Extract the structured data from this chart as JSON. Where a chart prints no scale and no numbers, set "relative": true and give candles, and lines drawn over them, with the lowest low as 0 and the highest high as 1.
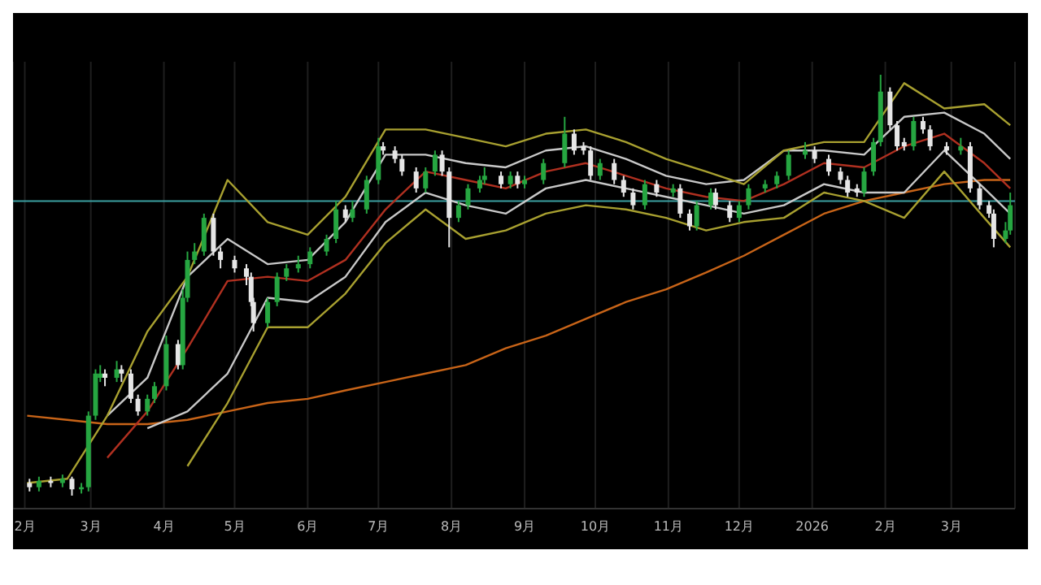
{
  "chart_data": {
    "type": "candlestick",
    "relative": true,
    "grid": "x",
    "xlim": [
      "2025-01-27",
      "2026-03-28"
    ],
    "xticks": [
      {
        "value": "2025-02-01",
        "label": "2月"
      },
      {
        "value": "2025-03-01",
        "label": "3月"
      },
      {
        "value": "2025-04-01",
        "label": "4月"
      },
      {
        "value": "2025-05-01",
        "label": "5月"
      },
      {
        "value": "2025-06-01",
        "label": "6月"
      },
      {
        "value": "2025-07-01",
        "label": "7月"
      },
      {
        "value": "2025-08-01",
        "label": "8月"
      },
      {
        "value": "2025-09-01",
        "label": "9月"
      },
      {
        "value": "2025-10-01",
        "label": "10月"
      },
      {
        "value": "2025-11-01",
        "label": "11月"
      },
      {
        "value": "2025-12-01",
        "label": "12月"
      },
      {
        "value": "2026-01-01",
        "label": "2026"
      },
      {
        "value": "2026-02-01",
        "label": "2月"
      },
      {
        "value": "2026-03-01",
        "label": "3月"
      }
    ],
    "x": [
      "2025-02-03",
      "2025-02-07",
      "2025-02-12",
      "2025-02-17",
      "2025-02-21",
      "2025-02-25",
      "2025-02-28",
      "2025-03-03",
      "2025-03-05",
      "2025-03-07",
      "2025-03-12",
      "2025-03-14",
      "2025-03-18",
      "2025-03-21",
      "2025-03-25",
      "2025-03-28",
      "2025-04-02",
      "2025-04-07",
      "2025-04-09",
      "2025-04-11",
      "2025-04-14",
      "2025-04-18",
      "2025-04-22",
      "2025-04-25",
      "2025-05-01",
      "2025-05-06",
      "2025-05-08",
      "2025-05-09",
      "2025-05-15",
      "2025-05-19",
      "2025-05-23",
      "2025-05-28",
      "2025-06-02",
      "2025-06-09",
      "2025-06-13",
      "2025-06-17",
      "2025-06-20",
      "2025-06-26",
      "2025-07-01",
      "2025-07-03",
      "2025-07-08",
      "2025-07-11",
      "2025-07-17",
      "2025-07-21",
      "2025-07-25",
      "2025-07-28",
      "2025-07-31",
      "2025-08-04",
      "2025-08-08",
      "2025-08-13",
      "2025-08-15",
      "2025-08-22",
      "2025-08-26",
      "2025-08-29",
      "2025-09-01",
      "2025-09-09",
      "2025-09-18",
      "2025-09-22",
      "2025-09-26",
      "2025-09-29",
      "2025-10-03",
      "2025-10-09",
      "2025-10-13",
      "2025-10-17",
      "2025-10-22",
      "2025-10-27",
      "2025-11-03",
      "2025-11-06",
      "2025-11-10",
      "2025-11-13",
      "2025-11-19",
      "2025-11-21",
      "2025-11-27",
      "2025-12-01",
      "2025-12-05",
      "2025-12-12",
      "2025-12-17",
      "2025-12-22",
      "2025-12-29",
      "2026-01-02",
      "2026-01-08",
      "2026-01-13",
      "2026-01-16",
      "2026-01-20",
      "2026-01-23",
      "2026-01-27",
      "2026-01-30",
      "2026-02-03",
      "2026-02-06",
      "2026-02-09",
      "2026-02-13",
      "2026-02-17",
      "2026-02-20",
      "2026-02-27",
      "2026-03-05",
      "2026-03-09",
      "2026-03-13",
      "2026-03-17",
      "2026-03-19",
      "2026-03-24",
      "2026-03-26"
    ],
    "ohlc": [
      [
        0.03,
        0.04,
        0.01,
        0.02
      ],
      [
        0.02,
        0.045,
        0.01,
        0.035
      ],
      [
        0.035,
        0.045,
        0.02,
        0.03
      ],
      [
        0.03,
        0.05,
        0.02,
        0.04
      ],
      [
        0.04,
        0.045,
        0,
        0.015
      ],
      [
        0.015,
        0.03,
        0.005,
        0.02
      ],
      [
        0.02,
        0.2,
        0.01,
        0.19
      ],
      [
        0.19,
        0.3,
        0.18,
        0.29
      ],
      [
        0.28,
        0.31,
        0.27,
        0.29
      ],
      [
        0.29,
        0.3,
        0.26,
        0.28
      ],
      [
        0.28,
        0.32,
        0.27,
        0.3
      ],
      [
        0.3,
        0.31,
        0.27,
        0.29
      ],
      [
        0.29,
        0.3,
        0.22,
        0.23
      ],
      [
        0.23,
        0.24,
        0.19,
        0.2
      ],
      [
        0.2,
        0.24,
        0.19,
        0.23
      ],
      [
        0.23,
        0.27,
        0.22,
        0.26
      ],
      [
        0.26,
        0.38,
        0.25,
        0.36
      ],
      [
        0.36,
        0.37,
        0.3,
        0.31
      ],
      [
        0.31,
        0.49,
        0.3,
        0.47
      ],
      [
        0.47,
        0.58,
        0.46,
        0.56
      ],
      [
        0.56,
        0.6,
        0.55,
        0.58
      ],
      [
        0.58,
        0.67,
        0.57,
        0.66
      ],
      [
        0.66,
        0.67,
        0.57,
        0.58
      ],
      [
        0.58,
        0.59,
        0.54,
        0.56
      ],
      [
        0.56,
        0.57,
        0.53,
        0.54
      ],
      [
        0.54,
        0.55,
        0.5,
        0.52
      ],
      [
        0.52,
        0.53,
        0.45,
        0.46
      ],
      [
        0.46,
        0.47,
        0.39,
        0.41
      ],
      [
        0.41,
        0.47,
        0.4,
        0.46
      ],
      [
        0.46,
        0.53,
        0.45,
        0.52
      ],
      [
        0.52,
        0.55,
        0.51,
        0.54
      ],
      [
        0.54,
        0.57,
        0.53,
        0.55
      ],
      [
        0.55,
        0.59,
        0.54,
        0.58
      ],
      [
        0.58,
        0.62,
        0.57,
        0.61
      ],
      [
        0.61,
        0.7,
        0.6,
        0.68
      ],
      [
        0.68,
        0.69,
        0.65,
        0.66
      ],
      [
        0.66,
        0.7,
        0.65,
        0.68
      ],
      [
        0.68,
        0.76,
        0.67,
        0.75
      ],
      [
        0.75,
        0.85,
        0.74,
        0.83
      ],
      [
        0.83,
        0.84,
        0.81,
        0.82
      ],
      [
        0.82,
        0.83,
        0.79,
        0.8
      ],
      [
        0.8,
        0.81,
        0.76,
        0.77
      ],
      [
        0.77,
        0.78,
        0.72,
        0.73
      ],
      [
        0.73,
        0.78,
        0.72,
        0.77
      ],
      [
        0.77,
        0.82,
        0.76,
        0.81
      ],
      [
        0.81,
        0.82,
        0.76,
        0.77
      ],
      [
        0.77,
        0.78,
        0.59,
        0.66
      ],
      [
        0.66,
        0.7,
        0.65,
        0.69
      ],
      [
        0.69,
        0.74,
        0.68,
        0.73
      ],
      [
        0.73,
        0.76,
        0.72,
        0.75
      ],
      [
        0.75,
        0.78,
        0.74,
        0.76
      ],
      [
        0.76,
        0.77,
        0.73,
        0.74
      ],
      [
        0.74,
        0.77,
        0.73,
        0.76
      ],
      [
        0.76,
        0.77,
        0.73,
        0.74
      ],
      [
        0.74,
        0.76,
        0.73,
        0.75
      ],
      [
        0.75,
        0.8,
        0.74,
        0.79
      ],
      [
        0.79,
        0.9,
        0.78,
        0.86
      ],
      [
        0.86,
        0.87,
        0.81,
        0.82
      ],
      [
        0.83,
        0.84,
        0.81,
        0.82
      ],
      [
        0.82,
        0.83,
        0.75,
        0.76
      ],
      [
        0.76,
        0.8,
        0.75,
        0.79
      ],
      [
        0.79,
        0.8,
        0.74,
        0.75
      ],
      [
        0.75,
        0.76,
        0.71,
        0.72
      ],
      [
        0.72,
        0.73,
        0.68,
        0.69
      ],
      [
        0.69,
        0.75,
        0.68,
        0.74
      ],
      [
        0.74,
        0.75,
        0.71,
        0.72
      ],
      [
        0.72,
        0.74,
        0.71,
        0.73
      ],
      [
        0.73,
        0.74,
        0.66,
        0.67
      ],
      [
        0.67,
        0.68,
        0.63,
        0.64
      ],
      [
        0.64,
        0.7,
        0.63,
        0.69
      ],
      [
        0.69,
        0.73,
        0.68,
        0.72
      ],
      [
        0.72,
        0.73,
        0.68,
        0.69
      ],
      [
        0.69,
        0.7,
        0.65,
        0.66
      ],
      [
        0.66,
        0.7,
        0.65,
        0.69
      ],
      [
        0.69,
        0.74,
        0.68,
        0.73
      ],
      [
        0.73,
        0.75,
        0.72,
        0.74
      ],
      [
        0.74,
        0.77,
        0.73,
        0.76
      ],
      [
        0.76,
        0.82,
        0.75,
        0.81
      ],
      [
        0.81,
        0.84,
        0.8,
        0.82
      ],
      [
        0.82,
        0.83,
        0.79,
        0.8
      ],
      [
        0.8,
        0.81,
        0.76,
        0.77
      ],
      [
        0.77,
        0.78,
        0.74,
        0.75
      ],
      [
        0.75,
        0.76,
        0.71,
        0.72
      ],
      [
        0.73,
        0.74,
        0.71,
        0.72
      ],
      [
        0.72,
        0.78,
        0.71,
        0.77
      ],
      [
        0.77,
        0.85,
        0.76,
        0.84
      ],
      [
        0.84,
        1,
        0.83,
        0.96
      ],
      [
        0.96,
        0.97,
        0.87,
        0.88
      ],
      [
        0.88,
        0.89,
        0.82,
        0.83
      ],
      [
        0.84,
        0.85,
        0.82,
        0.83
      ],
      [
        0.83,
        0.9,
        0.82,
        0.89
      ],
      [
        0.89,
        0.9,
        0.86,
        0.87
      ],
      [
        0.87,
        0.88,
        0.82,
        0.83
      ],
      [
        0.83,
        0.84,
        0.81,
        0.82
      ],
      [
        0.82,
        0.85,
        0.81,
        0.83
      ],
      [
        0.83,
        0.84,
        0.72,
        0.73
      ],
      [
        0.73,
        0.74,
        0.68,
        0.69
      ],
      [
        0.69,
        0.7,
        0.66,
        0.67
      ],
      [
        0.67,
        0.68,
        0.59,
        0.61
      ],
      [
        0.61,
        0.65,
        0.6,
        0.63
      ],
      [
        0.63,
        0.72,
        0.62,
        0.69
      ]
    ],
    "series": [
      {
        "type": "line",
        "color": "#c86418",
        "x": [
          "2025-02-02",
          "2025-02-19",
          "2025-03-08",
          "2025-03-25",
          "2025-04-11",
          "2025-04-28",
          "2025-05-15",
          "2025-06-01",
          "2025-06-17",
          "2025-07-04",
          "2025-07-21",
          "2025-08-07",
          "2025-08-24",
          "2025-09-10",
          "2025-09-27",
          "2025-10-14",
          "2025-10-31",
          "2025-11-17",
          "2025-12-03",
          "2025-12-20",
          "2026-01-06",
          "2026-01-23",
          "2026-02-09",
          "2026-02-26",
          "2026-03-15",
          "2026-03-26"
        ],
        "values": [
          0.19,
          0.18,
          0.17,
          0.17,
          0.18,
          0.2,
          0.22,
          0.23,
          0.25,
          0.27,
          0.29,
          0.31,
          0.35,
          0.38,
          0.42,
          0.46,
          0.49,
          0.53,
          0.57,
          0.62,
          0.67,
          0.7,
          0.72,
          0.74,
          0.75,
          0.75
        ]
      },
      {
        "type": "line",
        "color": "#b03020",
        "x": [
          "2025-03-08",
          "2025-03-25",
          "2025-04-11",
          "2025-04-28",
          "2025-05-15",
          "2025-06-01",
          "2025-06-17",
          "2025-07-04",
          "2025-07-21",
          "2025-08-07",
          "2025-08-24",
          "2025-09-10",
          "2025-09-27",
          "2025-10-14",
          "2025-10-31",
          "2025-11-17",
          "2025-12-03",
          "2025-12-20",
          "2026-01-06",
          "2026-01-23",
          "2026-02-09",
          "2026-02-26",
          "2026-03-15",
          "2026-03-26"
        ],
        "values": [
          0.09,
          0.2,
          0.35,
          0.51,
          0.52,
          0.51,
          0.56,
          0.68,
          0.77,
          0.75,
          0.73,
          0.77,
          0.79,
          0.76,
          0.73,
          0.71,
          0.7,
          0.74,
          0.79,
          0.78,
          0.83,
          0.86,
          0.79,
          0.73
        ]
      },
      {
        "type": "line",
        "color": "#c8c8c8",
        "x": [
          "2025-03-08",
          "2025-03-25",
          "2025-04-11",
          "2025-04-28",
          "2025-05-15",
          "2025-06-01",
          "2025-06-17",
          "2025-07-04",
          "2025-07-21",
          "2025-08-07",
          "2025-08-24",
          "2025-09-10",
          "2025-09-27",
          "2025-10-14",
          "2025-10-31",
          "2025-11-17",
          "2025-12-03",
          "2025-12-20",
          "2026-01-06",
          "2026-01-23",
          "2026-02-09",
          "2026-02-26",
          "2026-03-15",
          "2026-03-26"
        ],
        "values": [
          0.19,
          0.28,
          0.52,
          0.61,
          0.55,
          0.56,
          0.65,
          0.81,
          0.81,
          0.79,
          0.78,
          0.82,
          0.83,
          0.8,
          0.76,
          0.74,
          0.75,
          0.82,
          0.82,
          0.81,
          0.9,
          0.91,
          0.86,
          0.8
        ]
      },
      {
        "type": "line",
        "color": "#c8c8c8",
        "x": [
          "2025-03-25",
          "2025-04-11",
          "2025-04-28",
          "2025-05-15",
          "2025-06-01",
          "2025-06-17",
          "2025-07-04",
          "2025-07-21",
          "2025-08-07",
          "2025-08-24",
          "2025-09-10",
          "2025-09-27",
          "2025-10-14",
          "2025-10-31",
          "2025-11-17",
          "2025-12-03",
          "2025-12-20",
          "2026-01-06",
          "2026-01-23",
          "2026-02-09",
          "2026-02-26",
          "2026-03-15",
          "2026-03-26"
        ],
        "values": [
          0.16,
          0.2,
          0.29,
          0.47,
          0.46,
          0.52,
          0.65,
          0.72,
          0.69,
          0.67,
          0.73,
          0.75,
          0.73,
          0.71,
          0.69,
          0.67,
          0.69,
          0.74,
          0.72,
          0.72,
          0.82,
          0.73,
          0.67
        ]
      },
      {
        "type": "line",
        "color": "#a8a030",
        "x": [
          "2025-02-02",
          "2025-02-19",
          "2025-03-08",
          "2025-03-25",
          "2025-04-11",
          "2025-04-28",
          "2025-05-15",
          "2025-06-01",
          "2025-06-17",
          "2025-07-04",
          "2025-07-21",
          "2025-08-07",
          "2025-08-24",
          "2025-09-10",
          "2025-09-27",
          "2025-10-14",
          "2025-10-31",
          "2025-11-17",
          "2025-12-03",
          "2025-12-20",
          "2026-01-06",
          "2026-01-23",
          "2026-02-09",
          "2026-02-26",
          "2026-03-15",
          "2026-03-26"
        ],
        "values": [
          0.03,
          0.04,
          0.19,
          0.39,
          0.52,
          0.75,
          0.65,
          0.62,
          0.71,
          0.87,
          0.87,
          0.85,
          0.83,
          0.86,
          0.87,
          0.84,
          0.8,
          0.77,
          0.74,
          0.82,
          0.84,
          0.84,
          0.98,
          0.92,
          0.93,
          0.88
        ]
      },
      {
        "type": "line",
        "color": "#a8a030",
        "x": [
          "2025-04-11",
          "2025-04-28",
          "2025-05-15",
          "2025-06-01",
          "2025-06-17",
          "2025-07-04",
          "2025-07-21",
          "2025-08-07",
          "2025-08-24",
          "2025-09-10",
          "2025-09-27",
          "2025-10-14",
          "2025-10-31",
          "2025-11-17",
          "2025-12-03",
          "2025-12-20",
          "2026-01-06",
          "2026-01-23",
          "2026-02-09",
          "2026-02-26",
          "2026-03-15",
          "2026-03-26"
        ],
        "values": [
          0.07,
          0.22,
          0.4,
          0.4,
          0.48,
          0.6,
          0.68,
          0.61,
          0.63,
          0.67,
          0.69,
          0.68,
          0.66,
          0.63,
          0.65,
          0.66,
          0.72,
          0.7,
          0.66,
          0.77,
          0.66,
          0.59
        ]
      }
    ],
    "ref_lines": [
      {
        "axis": "y",
        "value": 0.7,
        "color": "#3a9ea0"
      }
    ]
  }
}
